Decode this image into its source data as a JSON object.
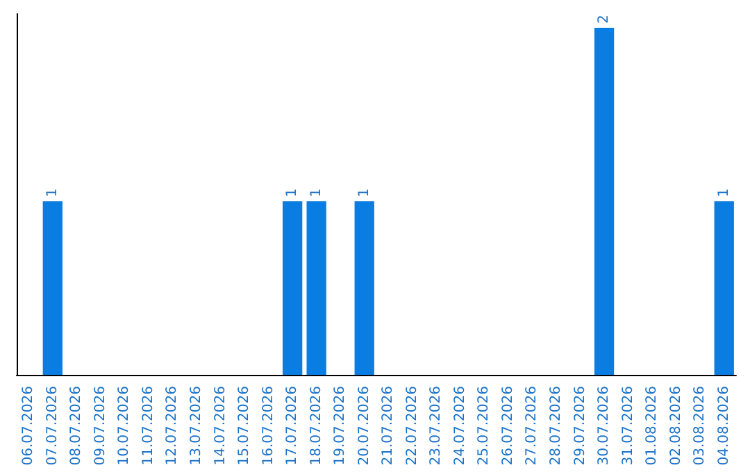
{
  "chart_data": {
    "type": "bar",
    "categories": [
      "06.07.2026",
      "07.07.2026",
      "08.07.2026",
      "09.07.2026",
      "10.07.2026",
      "11.07.2026",
      "12.07.2026",
      "13.07.2026",
      "14.07.2026",
      "15.07.2026",
      "16.07.2026",
      "17.07.2026",
      "18.07.2026",
      "19.07.2026",
      "20.07.2026",
      "21.07.2026",
      "22.07.2026",
      "23.07.2026",
      "24.07.2026",
      "25.07.2026",
      "26.07.2026",
      "27.07.2026",
      "28.07.2026",
      "29.07.2026",
      "30.07.2026",
      "31.07.2026",
      "01.08.2026",
      "02.08.2026",
      "03.08.2026",
      "04.08.2026"
    ],
    "values": [
      0,
      1,
      0,
      0,
      0,
      0,
      0,
      0,
      0,
      0,
      0,
      1,
      1,
      0,
      1,
      0,
      0,
      0,
      0,
      0,
      0,
      0,
      0,
      0,
      2,
      0,
      0,
      0,
      0,
      1
    ],
    "value_labels": [
      null,
      "1",
      null,
      null,
      null,
      null,
      null,
      null,
      null,
      null,
      null,
      "1",
      "1",
      null,
      "1",
      null,
      null,
      null,
      null,
      null,
      null,
      null,
      null,
      null,
      "2",
      null,
      null,
      null,
      null,
      "1"
    ],
    "color": "#0a7de3",
    "ylim": [
      0,
      2.08
    ],
    "tick_labels": "x",
    "grid": false
  }
}
